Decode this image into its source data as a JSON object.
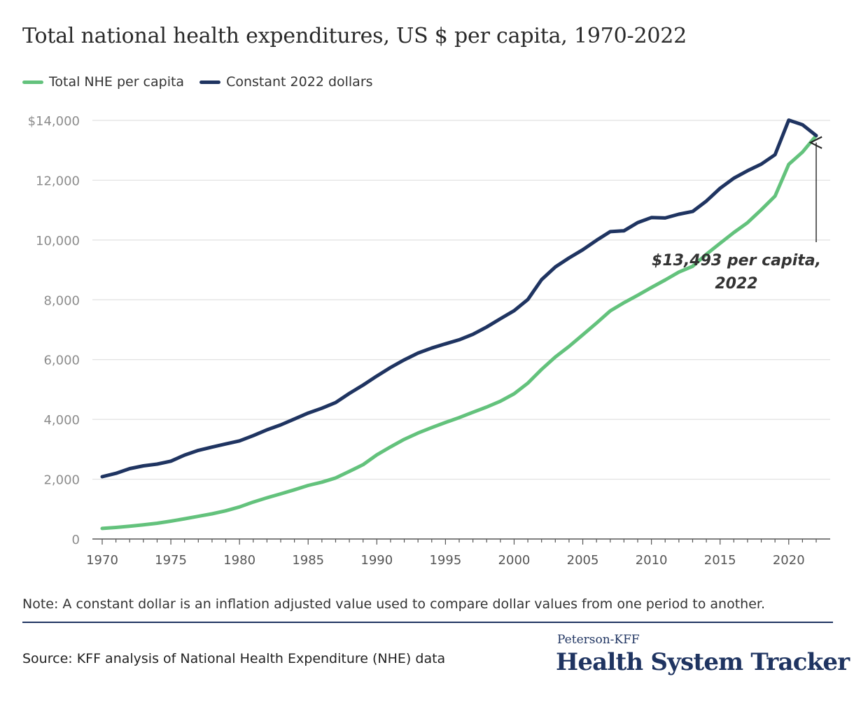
{
  "title": "Total national health expenditures, US $ per capita, 1970-2022",
  "note": "Note: A constant dollar is an inflation adjusted value used to compare dollar values from one period to another.",
  "source": "Source: KFF analysis of National Health Expenditure (NHE) data",
  "brand": {
    "small": "Peterson-KFF",
    "large": "Health System Tracker"
  },
  "colors": {
    "green": "#63c27c",
    "navy": "#1f3461",
    "grid": "#e0e0e0",
    "axis": "#555555",
    "tick_text": "#8c8c8c"
  },
  "chart_data": {
    "type": "line",
    "title": "Total national health expenditures, US $ per capita, 1970-2022",
    "xlabel": "",
    "ylabel": "",
    "xlim": [
      1970,
      2022
    ],
    "ylim": [
      0,
      14000
    ],
    "x_ticks": [
      1970,
      1975,
      1980,
      1985,
      1990,
      1995,
      2000,
      2005,
      2010,
      2015,
      2020
    ],
    "y_ticks": [
      0,
      2000,
      4000,
      6000,
      8000,
      10000,
      12000,
      14000
    ],
    "y_tick_labels": [
      "0",
      "2,000",
      "4,000",
      "6,000",
      "8,000",
      "10,000",
      "12,000",
      "$14,000"
    ],
    "grid": true,
    "legend_position": "top-left",
    "x": [
      1970,
      1971,
      1972,
      1973,
      1974,
      1975,
      1976,
      1977,
      1978,
      1979,
      1980,
      1981,
      1982,
      1983,
      1984,
      1985,
      1986,
      1987,
      1988,
      1989,
      1990,
      1991,
      1992,
      1993,
      1994,
      1995,
      1996,
      1997,
      1998,
      1999,
      2000,
      2001,
      2002,
      2003,
      2004,
      2005,
      2006,
      2007,
      2008,
      2009,
      2010,
      2011,
      2012,
      2013,
      2014,
      2015,
      2016,
      2017,
      2018,
      2019,
      2020,
      2021,
      2022
    ],
    "series": [
      {
        "name": "Total NHE per capita",
        "color": "#63c27c",
        "values": [
          353,
          387,
          429,
          472,
          526,
          597,
          677,
          759,
          842,
          944,
          1072,
          1237,
          1379,
          1509,
          1646,
          1791,
          1901,
          2041,
          2261,
          2486,
          2814,
          3080,
          3334,
          3544,
          3727,
          3897,
          4060,
          4240,
          4413,
          4607,
          4858,
          5214,
          5672,
          6087,
          6440,
          6829,
          7222,
          7630,
          7904,
          8151,
          8412,
          8662,
          8927,
          9120,
          9523,
          9890,
          10250,
          10580,
          11010,
          11470,
          12530,
          12940,
          13493
        ]
      },
      {
        "name": "Constant 2022 dollars",
        "color": "#1f3461",
        "values": [
          2084,
          2196,
          2354,
          2447,
          2505,
          2604,
          2808,
          2965,
          3073,
          3180,
          3283,
          3457,
          3652,
          3815,
          4013,
          4212,
          4373,
          4563,
          4869,
          5147,
          5449,
          5735,
          5992,
          6219,
          6386,
          6527,
          6662,
          6845,
          7090,
          7365,
          7637,
          8011,
          8673,
          9097,
          9399,
          9674,
          9990,
          10280,
          10309,
          10581,
          10751,
          10736,
          10864,
          10954,
          11302,
          11729,
          12067,
          12317,
          12537,
          12852,
          14009,
          13854,
          13493
        ]
      }
    ],
    "annotation": {
      "text_line1": "$13,493 per capita,",
      "text_line2": "2022",
      "x": 2022,
      "y": 13493
    }
  }
}
